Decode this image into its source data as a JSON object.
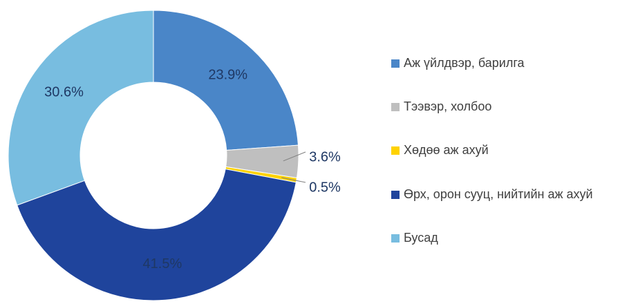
{
  "chart_data": {
    "type": "pie",
    "categories": [
      "Аж үйлдвэр, барилга",
      "Тээвэр, холбоо",
      "Хөдөө аж ахуй",
      "Өрх, орон сууц, нийтийн аж ахуй",
      "Бусад"
    ],
    "values": [
      23.9,
      3.6,
      0.5,
      41.5,
      30.6
    ],
    "value_labels": [
      "23.9%",
      "3.6%",
      "0.5%",
      "41.5%",
      "30.6%"
    ],
    "colors": [
      "#4a86c8",
      "#bfbfbf",
      "#ffd200",
      "#1f449c",
      "#78bde0"
    ],
    "donut": true,
    "legend": "right"
  }
}
